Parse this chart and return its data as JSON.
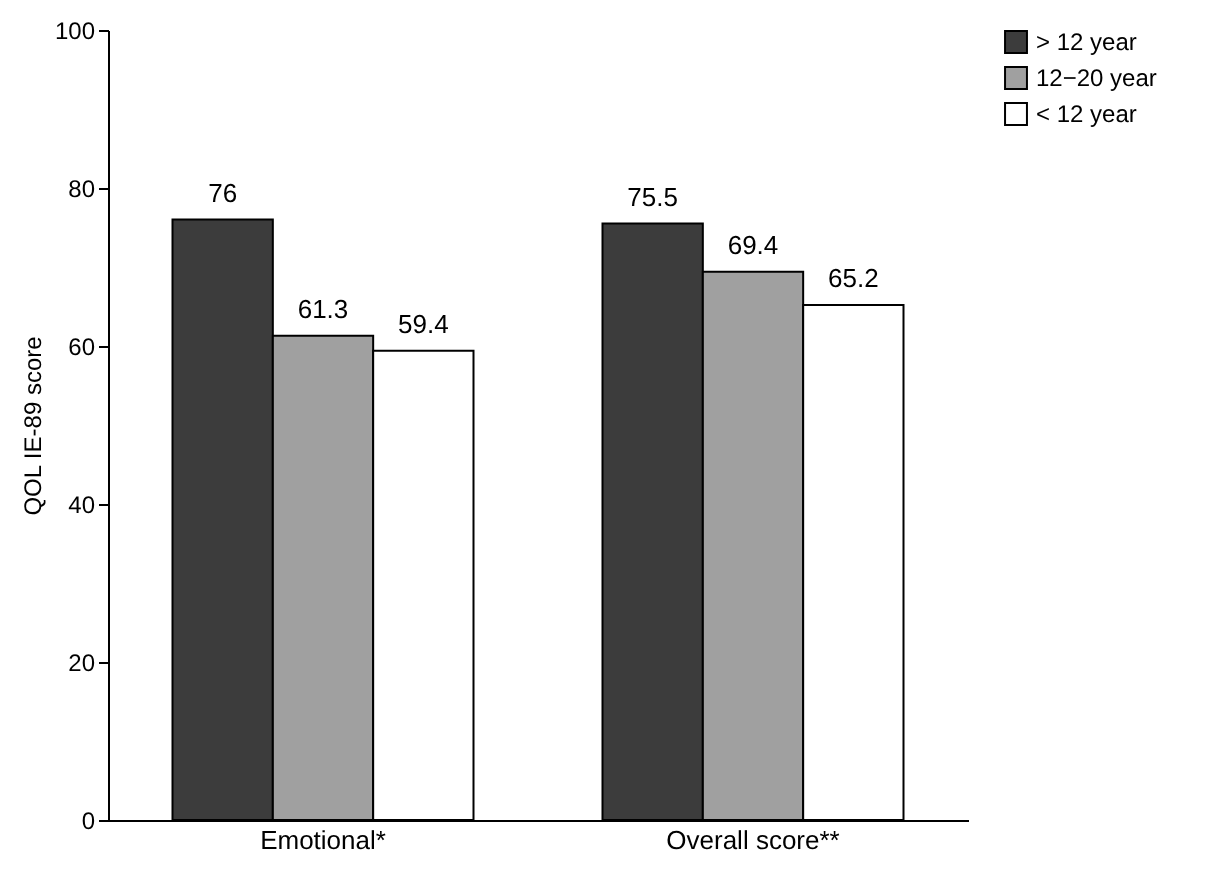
{
  "chart_data": {
    "type": "bar",
    "ylabel": "QOL IE-89 score",
    "categories": [
      "Emotional*",
      "Overall score**"
    ],
    "series": [
      {
        "name": "> 12 year",
        "color": "#3c3c3c",
        "values": [
          76,
          75.5
        ]
      },
      {
        "name": "12−20 year",
        "color": "#a0a0a0",
        "values": [
          61.3,
          69.4
        ]
      },
      {
        "name": "< 12 year",
        "color": "#ffffff",
        "values": [
          59.4,
          65.2
        ]
      }
    ],
    "ylim": [
      0,
      100
    ],
    "yticks": [
      0,
      20,
      40,
      60,
      80,
      100
    ],
    "legend": "right",
    "data_labels": true
  }
}
